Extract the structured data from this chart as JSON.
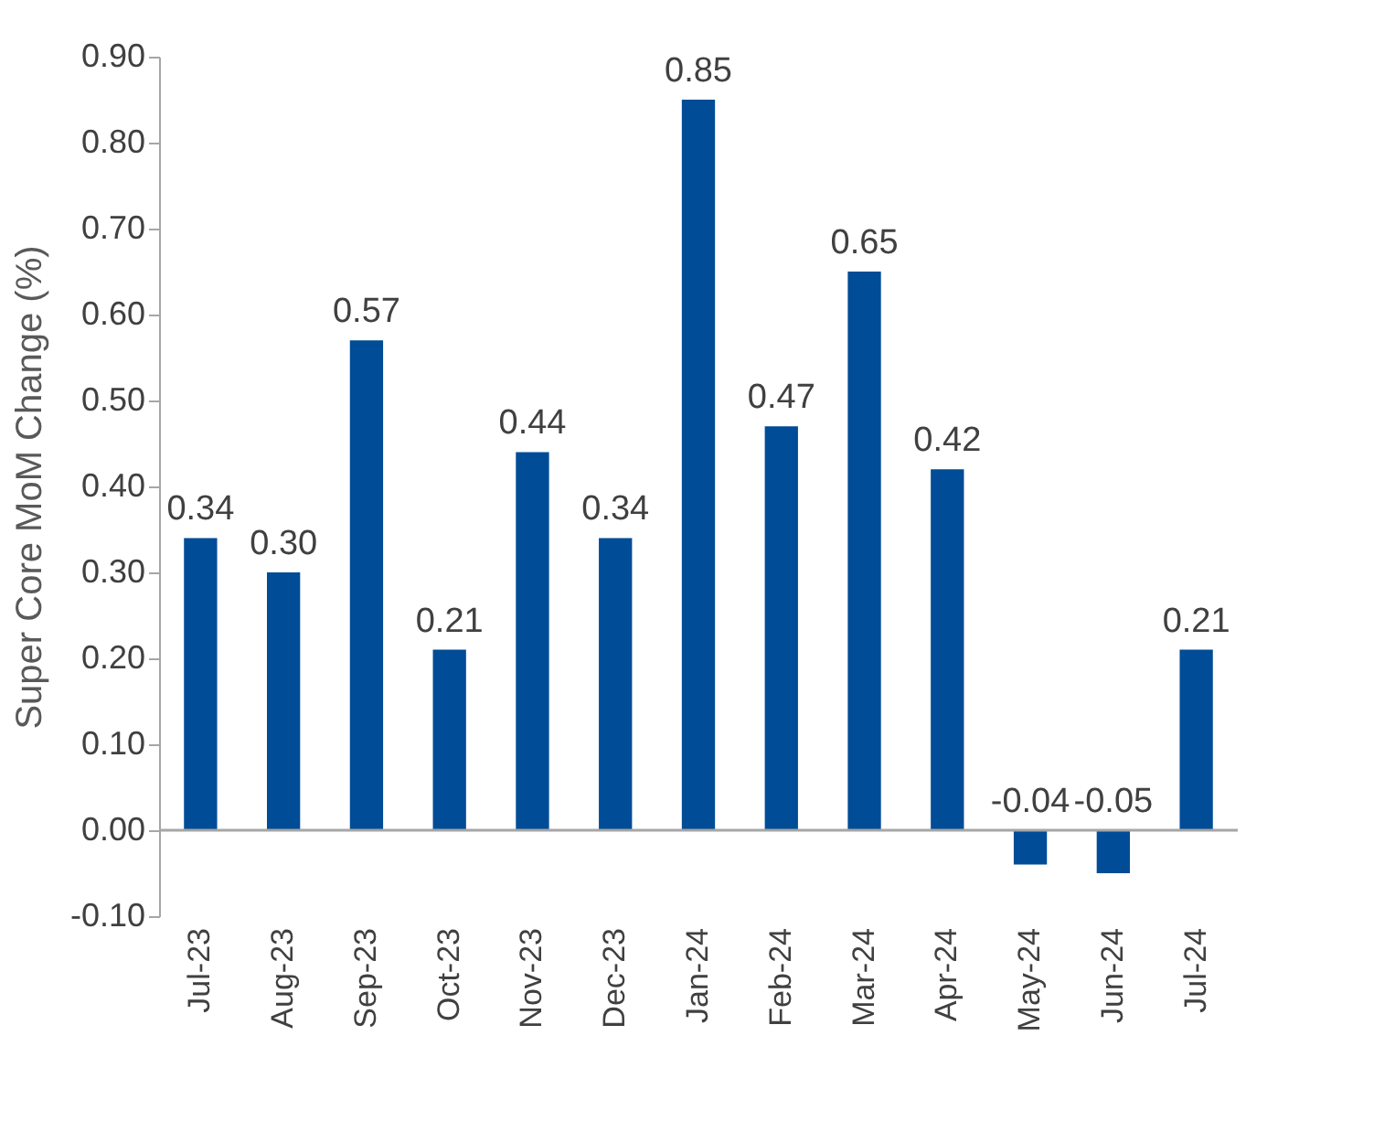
{
  "chart_data": {
    "type": "bar",
    "ylabel": "Super Core MoM Change (%)",
    "categories": [
      "Jul-23",
      "Aug-23",
      "Sep-23",
      "Oct-23",
      "Nov-23",
      "Dec-23",
      "Jan-24",
      "Feb-24",
      "Mar-24",
      "Apr-24",
      "May-24",
      "Jun-24",
      "Jul-24"
    ],
    "values": [
      0.34,
      0.3,
      0.57,
      0.21,
      0.44,
      0.34,
      0.85,
      0.47,
      0.65,
      0.42,
      -0.04,
      -0.05,
      0.21
    ],
    "value_labels": [
      "0.34",
      "0.30",
      "0.57",
      "0.21",
      "0.44",
      "0.34",
      "0.85",
      "0.47",
      "0.65",
      "0.42",
      "-0.04",
      "-0.05",
      "0.21"
    ],
    "color": "#004c97",
    "ylim": [
      -0.1,
      0.9
    ],
    "yticks": [
      {
        "value": -0.1,
        "label": "-0.10"
      },
      {
        "value": 0,
        "label": "0.00"
      },
      {
        "value": 0.1,
        "label": "0.10"
      },
      {
        "value": 0.2,
        "label": "0.20"
      },
      {
        "value": 0.3,
        "label": "0.30"
      },
      {
        "value": 0.4,
        "label": "0.40"
      },
      {
        "value": 0.5,
        "label": "0.50"
      },
      {
        "value": 0.6,
        "label": "0.60"
      },
      {
        "value": 0.7,
        "label": "0.70"
      },
      {
        "value": 0.8,
        "label": "0.80"
      },
      {
        "value": 0.9,
        "label": "0.90"
      }
    ],
    "ref_lines": [
      {
        "axis": "y",
        "value": 0,
        "color": "#a6a6a6"
      }
    ],
    "grid": false
  }
}
